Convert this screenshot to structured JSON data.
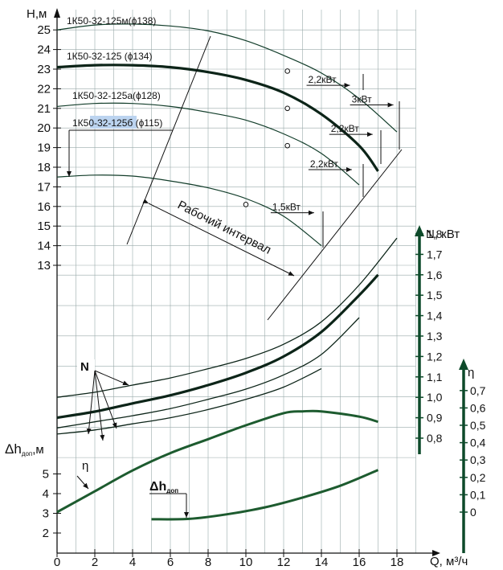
{
  "chart_data": {
    "type": "line",
    "axes": {
      "q_label": "Q, м³/ч",
      "h_label": "H,м",
      "n_label": "N, кВт",
      "eta_label": "η",
      "npsh_label": "Δh",
      "npsh_sub": "доп",
      "npsh_unit": ",м",
      "q_ticks": [
        "0",
        "2",
        "4",
        "6",
        "8",
        "10",
        "12",
        "14",
        "16",
        "18"
      ],
      "h_ticks": [
        "13",
        "14",
        "15",
        "16",
        "17",
        "18",
        "19",
        "20",
        "21",
        "22",
        "23",
        "24",
        "25"
      ],
      "n_ticks": [
        "0,8",
        "0,9",
        "1,0",
        "1,1",
        "1,2",
        "1,3",
        "1,4",
        "1,5",
        "1,6",
        "1,7",
        "1,8"
      ],
      "eta_ticks": [
        "0",
        "0,1",
        "0,2",
        "0,3",
        "0,4",
        "0,5",
        "0,6",
        "0,7"
      ],
      "npsh_ticks": [
        "2",
        "3",
        "4",
        "5"
      ],
      "q_range": [
        0,
        19
      ],
      "h_range": [
        13,
        25.5
      ],
      "n_range": [
        0.8,
        1.8
      ],
      "eta_range": [
        0,
        0.7
      ],
      "npsh_range": [
        2,
        5
      ]
    },
    "labels": {
      "working_range": "Рабочий интервал",
      "n_curves": "N",
      "eta_curve": "η",
      "npsh_curve": "Δh",
      "npsh_curve_sub": "доп"
    },
    "h_series": [
      {
        "name": "1К50-32-125м(ϕ138)",
        "x": [
          0,
          2,
          4,
          6,
          8,
          10,
          12,
          14,
          16,
          18
        ],
        "y": [
          25.0,
          25.25,
          25.3,
          25.2,
          24.95,
          24.45,
          23.7,
          22.8,
          21.5,
          19.8
        ]
      },
      {
        "name": "1К50-32-125 (ϕ134)",
        "x": [
          0,
          2,
          4,
          6,
          8,
          10,
          12,
          14,
          16,
          17
        ],
        "y": [
          23.1,
          23.2,
          23.2,
          23.1,
          22.85,
          22.45,
          21.8,
          20.7,
          19.1,
          17.8
        ]
      },
      {
        "name": "1К50-32-125а(ϕ128)",
        "x": [
          0,
          2,
          4,
          6,
          8,
          10,
          12,
          14,
          16
        ],
        "y": [
          21.1,
          21.25,
          21.25,
          21.1,
          20.8,
          20.4,
          19.7,
          18.7,
          17.1
        ]
      },
      {
        "name": "1К50-32-125б (ϕ115)",
        "x": [
          0,
          2,
          4,
          6,
          8,
          10,
          12,
          14
        ],
        "y": [
          17.5,
          17.6,
          17.55,
          17.3,
          16.95,
          16.4,
          15.5,
          14.0
        ]
      }
    ],
    "power_annotations": [
      {
        "text": "2,2кВт",
        "q": 13.3,
        "h": 22.3
      },
      {
        "text": "3кВт",
        "q": 15.6,
        "h": 21.3
      },
      {
        "text": "2,2кВт",
        "q": 14.5,
        "h": 19.8
      },
      {
        "text": "2,2кВт",
        "q": 13.4,
        "h": 18.0
      },
      {
        "text": "1,5кВт",
        "q": 11.4,
        "h": 15.8
      }
    ],
    "n_series": [
      {
        "name": "N 1К50-32-125м",
        "x": [
          0,
          2,
          4,
          6,
          8,
          10,
          12,
          14,
          16,
          18
        ],
        "y": [
          1.0,
          1.025,
          1.06,
          1.095,
          1.14,
          1.19,
          1.26,
          1.37,
          1.55,
          1.78
        ]
      },
      {
        "name": "N 1К50-32-125",
        "x": [
          0,
          2,
          4,
          6,
          8,
          10,
          12,
          14,
          16,
          17
        ],
        "y": [
          0.9,
          0.93,
          0.97,
          1.01,
          1.06,
          1.12,
          1.2,
          1.32,
          1.5,
          1.6
        ]
      },
      {
        "name": "N 1К50-32-125а",
        "x": [
          0,
          2,
          4,
          6,
          8,
          10,
          12,
          14,
          16
        ],
        "y": [
          0.85,
          0.88,
          0.91,
          0.945,
          0.99,
          1.04,
          1.11,
          1.21,
          1.39
        ]
      },
      {
        "name": "N 1К50-32-125б",
        "x": [
          0,
          2,
          4,
          6,
          8,
          10,
          12,
          14
        ],
        "y": [
          0.82,
          0.84,
          0.87,
          0.9,
          0.94,
          0.99,
          1.05,
          1.14
        ]
      }
    ],
    "eta_series": {
      "name": "η",
      "x": [
        0,
        2,
        4,
        6,
        8,
        10,
        12,
        13,
        14,
        16,
        17
      ],
      "y": [
        0.0,
        0.12,
        0.24,
        0.34,
        0.42,
        0.5,
        0.57,
        0.58,
        0.58,
        0.55,
        0.52
      ]
    },
    "npsh_series": {
      "name": "Δh доп",
      "x": [
        5,
        7,
        9,
        11,
        13,
        15,
        17
      ],
      "y": [
        2.7,
        2.72,
        2.95,
        3.3,
        3.8,
        4.4,
        5.2
      ]
    }
  }
}
